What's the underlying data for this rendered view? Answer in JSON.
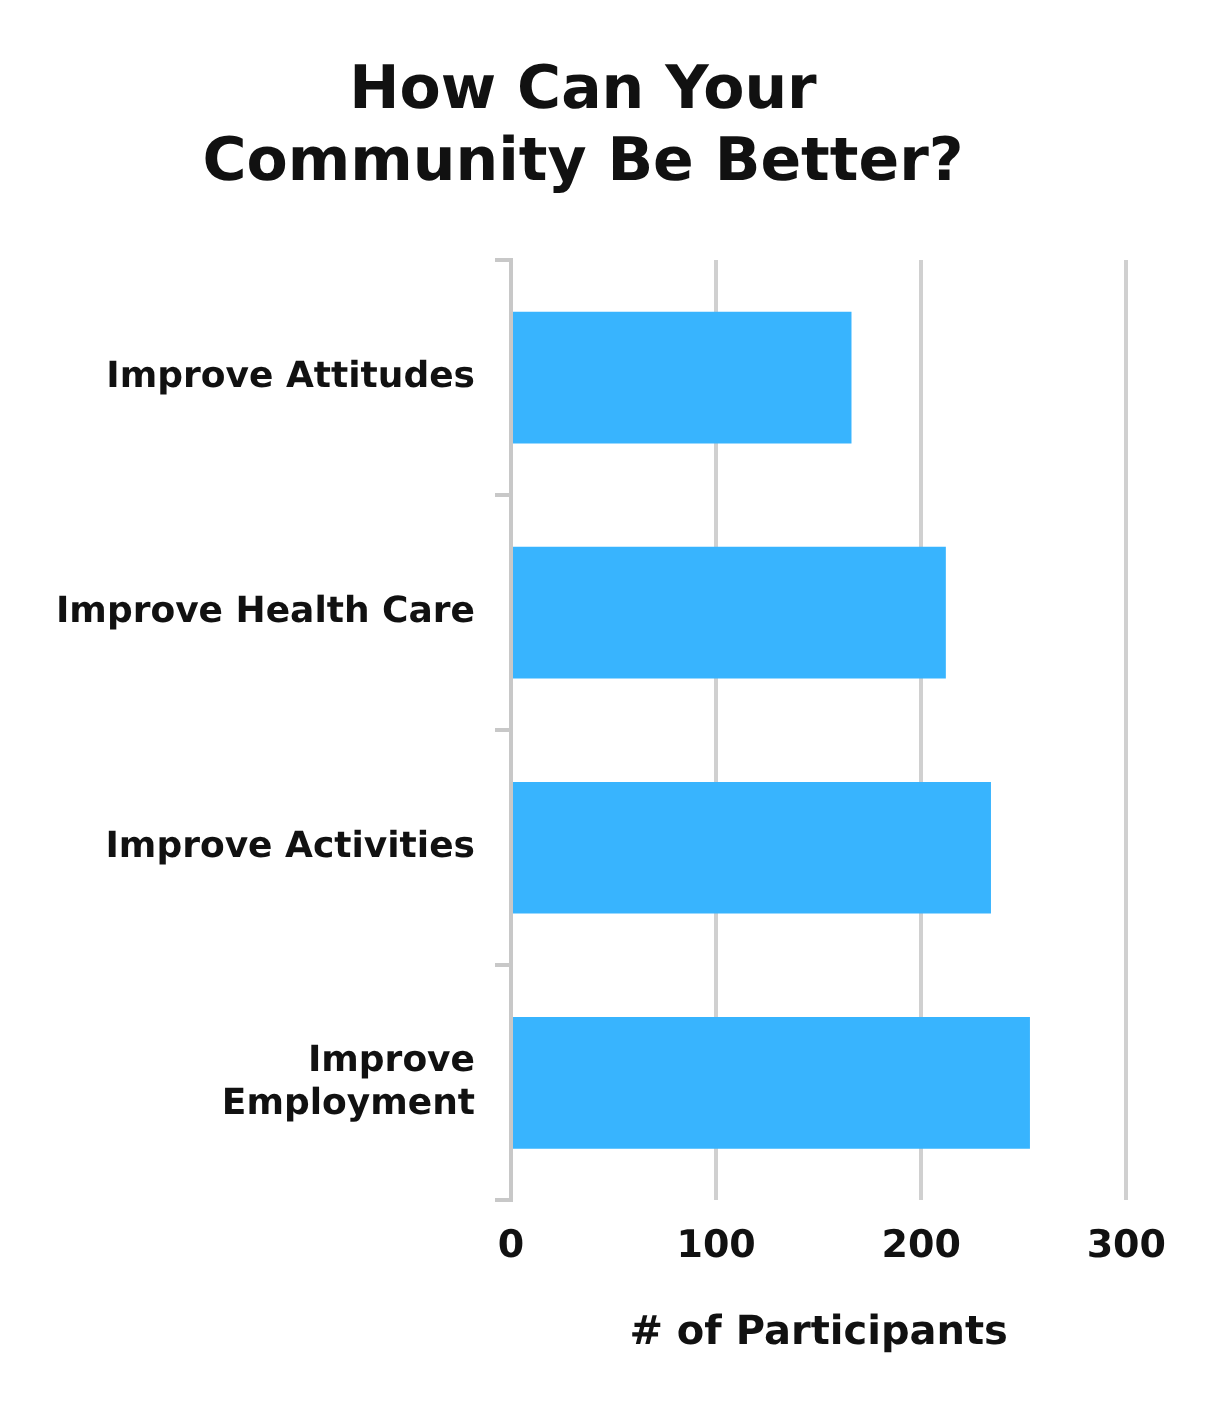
{
  "chart_data": {
    "type": "bar",
    "orientation": "horizontal",
    "title": "How Can Your\nCommunity Be Better?",
    "xlabel": "# of Participants",
    "categories": [
      "Improve Attitudes",
      "Improve Health Care",
      "Improve Activities",
      "Improve\nEmployment"
    ],
    "values": [
      166,
      212,
      234,
      253
    ],
    "color": "#38b4fe",
    "xlim": [
      0,
      300
    ],
    "xticks": [
      0,
      100,
      200,
      300
    ],
    "grid": "x",
    "legend": false
  }
}
